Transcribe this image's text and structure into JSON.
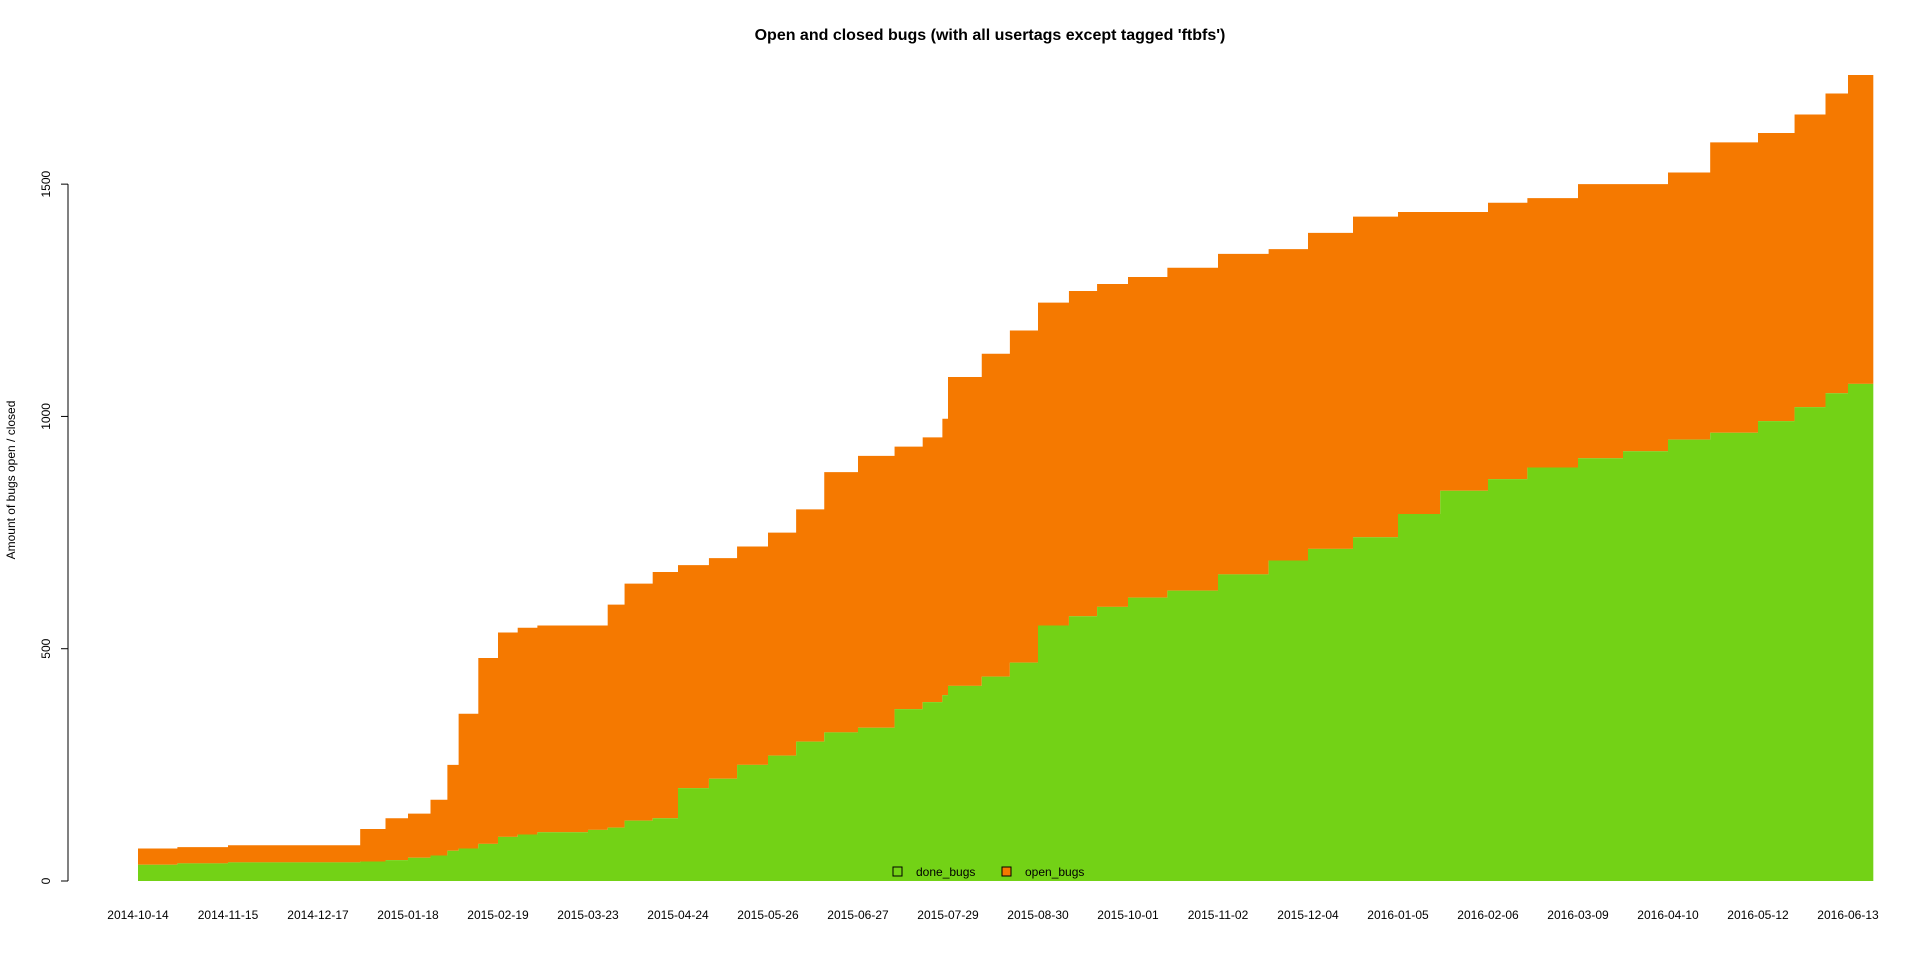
{
  "chart_data": {
    "type": "area",
    "stacked": true,
    "title": "Open and closed bugs (with all usertags except tagged 'ftbfs')",
    "xlabel": "",
    "ylabel": "Amount of bugs open / closed",
    "ylim": [
      0,
      1750
    ],
    "yticks": [
      0,
      500,
      1000,
      1500
    ],
    "xticks": [
      "2014-10-14",
      "2014-11-15",
      "2014-12-17",
      "2015-01-18",
      "2015-02-19",
      "2015-03-23",
      "2015-04-24",
      "2015-05-26",
      "2015-06-27",
      "2015-07-29",
      "2015-08-30",
      "2015-10-01",
      "2015-11-02",
      "2015-12-04",
      "2016-01-05",
      "2016-02-06",
      "2016-03-09",
      "2016-04-10",
      "2016-05-12",
      "2016-06-13"
    ],
    "x_start": "2014-10-14",
    "x_end": "2016-06-13",
    "grid": false,
    "legend": "bottom-center",
    "x": [
      "2014-10-14",
      "2014-10-28",
      "2014-11-15",
      "2014-12-01",
      "2014-12-17",
      "2014-12-25",
      "2015-01-01",
      "2015-01-10",
      "2015-01-18",
      "2015-01-26",
      "2015-02-01",
      "2015-02-05",
      "2015-02-12",
      "2015-02-19",
      "2015-02-26",
      "2015-03-05",
      "2015-03-23",
      "2015-03-30",
      "2015-04-05",
      "2015-04-15",
      "2015-04-24",
      "2015-05-05",
      "2015-05-15",
      "2015-05-26",
      "2015-06-05",
      "2015-06-15",
      "2015-06-27",
      "2015-07-10",
      "2015-07-20",
      "2015-07-27",
      "2015-07-29",
      "2015-08-10",
      "2015-08-20",
      "2015-08-30",
      "2015-09-10",
      "2015-09-20",
      "2015-10-01",
      "2015-10-15",
      "2015-11-02",
      "2015-11-20",
      "2015-12-04",
      "2015-12-20",
      "2016-01-05",
      "2016-01-20",
      "2016-02-06",
      "2016-02-20",
      "2016-03-09",
      "2016-03-25",
      "2016-04-10",
      "2016-04-25",
      "2016-05-12",
      "2016-05-25",
      "2016-06-05",
      "2016-06-13",
      "2016-06-22"
    ],
    "series": [
      {
        "name": "done_bugs",
        "color": "#73d216",
        "values": [
          35,
          38,
          40,
          40,
          40,
          40,
          42,
          45,
          50,
          55,
          65,
          70,
          80,
          95,
          100,
          105,
          110,
          115,
          130,
          135,
          200,
          220,
          250,
          270,
          300,
          320,
          330,
          370,
          385,
          400,
          420,
          440,
          470,
          550,
          570,
          590,
          610,
          625,
          660,
          690,
          715,
          740,
          790,
          840,
          865,
          890,
          910,
          925,
          950,
          965,
          990,
          1020,
          1050,
          1070,
          1095
        ]
      },
      {
        "name": "open_bugs",
        "color": "#f57900",
        "values": [
          35,
          35,
          37,
          37,
          37,
          37,
          70,
          90,
          95,
          120,
          185,
          290,
          400,
          440,
          445,
          445,
          440,
          480,
          510,
          530,
          480,
          475,
          470,
          480,
          500,
          560,
          585,
          565,
          570,
          595,
          665,
          695,
          715,
          695,
          700,
          695,
          690,
          695,
          690,
          670,
          680,
          690,
          650,
          600,
          595,
          580,
          590,
          575,
          575,
          625,
          620,
          630,
          645,
          665,
          660
        ]
      }
    ]
  }
}
